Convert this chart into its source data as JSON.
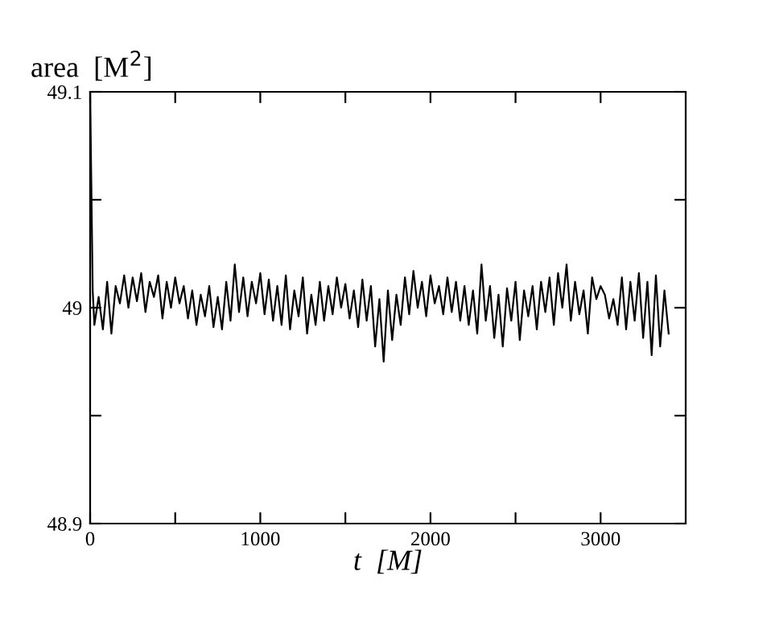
{
  "chart_data": {
    "type": "line",
    "xlabel": "t  [M]",
    "ylabel": "area  [M$^{2}$]",
    "xlim": [
      0,
      3500
    ],
    "ylim": [
      48.9,
      49.1
    ],
    "xticks": [
      0,
      {
        "value": 500,
        "label": null
      },
      1000,
      {
        "value": 1500,
        "label": null
      },
      2000,
      {
        "value": 2500,
        "label": null
      },
      3000
    ],
    "yticks": [
      48.9,
      {
        "value": 48.95,
        "label": null
      },
      49,
      {
        "value": 49.05,
        "label": null
      },
      49.1
    ],
    "grid": false,
    "legend": false,
    "marker": "none",
    "line_style": "solid",
    "series": [
      {
        "color": "#000000",
        "x": [
          0,
          15,
          25,
          50,
          75,
          100,
          125,
          150,
          175,
          200,
          225,
          250,
          275,
          300,
          325,
          350,
          375,
          400,
          425,
          450,
          475,
          500,
          525,
          550,
          575,
          600,
          625,
          650,
          675,
          700,
          725,
          750,
          775,
          800,
          825,
          850,
          875,
          900,
          925,
          950,
          975,
          1000,
          1025,
          1050,
          1075,
          1100,
          1125,
          1150,
          1175,
          1200,
          1225,
          1250,
          1275,
          1300,
          1325,
          1350,
          1375,
          1400,
          1425,
          1450,
          1475,
          1500,
          1525,
          1550,
          1575,
          1600,
          1625,
          1650,
          1675,
          1700,
          1725,
          1750,
          1775,
          1800,
          1825,
          1850,
          1875,
          1900,
          1925,
          1950,
          1975,
          2000,
          2025,
          2050,
          2075,
          2100,
          2125,
          2150,
          2175,
          2200,
          2225,
          2250,
          2275,
          2300,
          2325,
          2350,
          2375,
          2400,
          2425,
          2450,
          2475,
          2500,
          2525,
          2550,
          2575,
          2600,
          2625,
          2650,
          2675,
          2700,
          2725,
          2750,
          2775,
          2800,
          2825,
          2850,
          2875,
          2900,
          2925,
          2950,
          2975,
          3000,
          3025,
          3050,
          3075,
          3100,
          3125,
          3150,
          3175,
          3200,
          3225,
          3250,
          3275,
          3300,
          3325,
          3350,
          3375,
          3400
        ],
        "values": [
          49.1,
          49.008,
          48.992,
          49.005,
          48.99,
          49.012,
          48.988,
          49.01,
          49.002,
          49.015,
          49.0,
          49.014,
          49.003,
          49.016,
          48.998,
          49.012,
          49.005,
          49.015,
          48.995,
          49.012,
          49.0,
          49.014,
          49.002,
          49.01,
          48.995,
          49.008,
          48.992,
          49.006,
          48.996,
          49.01,
          48.991,
          49.005,
          48.99,
          49.012,
          48.994,
          49.02,
          48.998,
          49.014,
          48.996,
          49.012,
          49.002,
          49.016,
          48.997,
          49.013,
          48.994,
          49.01,
          48.992,
          49.015,
          48.99,
          49.008,
          48.996,
          49.014,
          48.988,
          49.006,
          48.992,
          49.012,
          48.994,
          49.01,
          48.997,
          49.014,
          49.0,
          49.011,
          48.995,
          49.008,
          48.991,
          49.013,
          48.994,
          49.01,
          48.982,
          49.004,
          48.975,
          49.008,
          48.985,
          49.006,
          48.992,
          49.014,
          48.997,
          49.017,
          49.0,
          49.012,
          48.996,
          49.015,
          49.002,
          49.01,
          48.997,
          49.014,
          48.998,
          49.012,
          48.994,
          49.01,
          48.992,
          49.008,
          48.988,
          49.02,
          48.994,
          49.01,
          48.986,
          49.006,
          48.982,
          49.009,
          48.994,
          49.012,
          48.985,
          49.008,
          48.996,
          49.01,
          48.99,
          49.012,
          48.998,
          49.014,
          48.992,
          49.016,
          49.0,
          49.02,
          48.994,
          49.012,
          48.997,
          49.008,
          48.988,
          49.014,
          49.004,
          49.01,
          49.006,
          48.995,
          49.004,
          48.992,
          49.014,
          48.99,
          49.012,
          48.994,
          49.016,
          48.986,
          49.012,
          48.978,
          49.015,
          48.982,
          49.008,
          48.988
        ]
      }
    ]
  }
}
